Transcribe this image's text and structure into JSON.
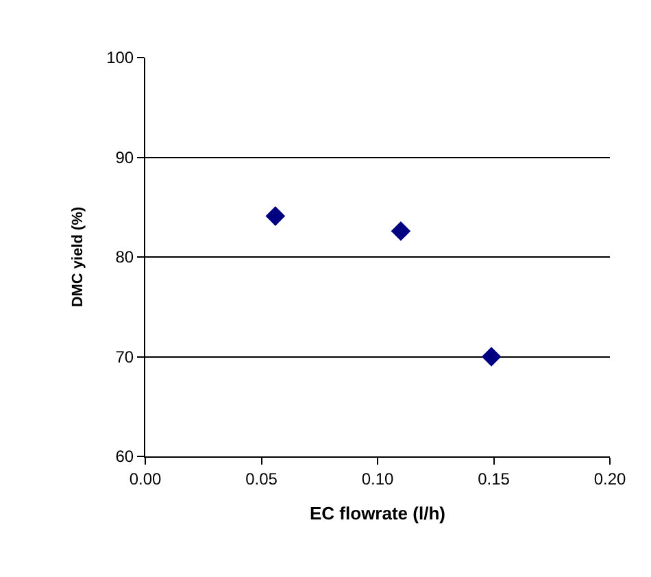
{
  "chart_data": {
    "type": "scatter",
    "xlabel": "EC flowrate (l/h)",
    "ylabel": "DMC yield (%)",
    "x": [
      0.056,
      0.11,
      0.149
    ],
    "values": [
      84.1,
      82.6,
      70.0
    ],
    "color": "#000080",
    "marker": "diamond",
    "xlim": [
      0,
      0.2
    ],
    "xticks": [
      {
        "value": 0,
        "label": "0.00"
      },
      {
        "value": 0.05,
        "label": "0.05"
      },
      {
        "value": 0.1,
        "label": "0.10"
      },
      {
        "value": 0.15,
        "label": "0.15"
      },
      {
        "value": 0.2,
        "label": "0.20"
      }
    ],
    "ylim": [
      60,
      100
    ],
    "yticks": [
      60,
      70,
      80,
      90,
      100
    ],
    "grid": "y"
  }
}
